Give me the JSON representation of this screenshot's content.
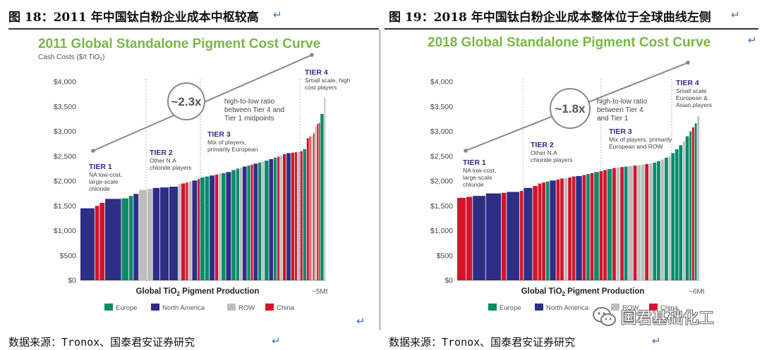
{
  "figures": [
    {
      "fig_title": "图 18：2011 年中国钛白粉企业成本中枢较高",
      "source": "数据来源：Tronox、国泰君安证券研究",
      "chart_data": {
        "type": "bar",
        "title": "2011 Global Standalone Pigment Cost Curve",
        "ylabel_prefix": "Cash Costs ($/t TiO",
        "ylabel_sub": "2",
        "ylabel_suffix": ")",
        "xlabel_prefix": "Global TiO",
        "xlabel_sub": "2",
        "xlabel_suffix": " Pigment Production",
        "xmax_label": "~5Mt",
        "ylim": [
          0,
          4000
        ],
        "yticks": [
          "$0",
          "$500",
          "$1,000",
          "$1,500",
          "$2,000",
          "$2,500",
          "$3,000",
          "$3,500",
          "$4,000"
        ],
        "ratio_label": "~2.3x",
        "ratio_note": [
          "high-to-low ratio",
          "between Tier 4 and",
          "Tier 1 midpoints"
        ],
        "tiers": [
          {
            "name": "TIER 1",
            "desc": [
              "NA low-cost,",
              "large-scale",
              "chloride"
            ]
          },
          {
            "name": "TIER 2",
            "desc": [
              "Other N.A",
              "chloride players"
            ]
          },
          {
            "name": "TIER 3",
            "desc": [
              "Mix of players,",
              "primarily European"
            ]
          },
          {
            "name": "TIER 4",
            "desc": [
              "Small scale, high",
              "cost players"
            ]
          }
        ],
        "legend": [
          {
            "name": "Europe",
            "color": "#0b8a6c"
          },
          {
            "name": "North America",
            "color": "#2e2e86"
          },
          {
            "name": "ROW",
            "color": "#bdbdbd"
          },
          {
            "name": "China",
            "color": "#d1152b"
          }
        ],
        "bars": [
          {
            "r": "North America",
            "w": 0.16,
            "v": 1450
          },
          {
            "r": "China",
            "w": 0.05,
            "v": 1500
          },
          {
            "r": "China",
            "w": 0.06,
            "v": 1560
          },
          {
            "r": "North America",
            "w": 0.18,
            "v": 1640
          },
          {
            "r": "Europe",
            "w": 0.08,
            "v": 1650
          },
          {
            "r": "Europe",
            "w": 0.05,
            "v": 1700
          },
          {
            "r": "North America",
            "w": 0.06,
            "v": 1740
          },
          {
            "r": "ROW",
            "w": 0.09,
            "v": 1820
          },
          {
            "r": "ROW",
            "w": 0.06,
            "v": 1840
          },
          {
            "r": "North America",
            "w": 0.08,
            "v": 1860
          },
          {
            "r": "North America",
            "w": 0.1,
            "v": 1870
          },
          {
            "r": "North America",
            "w": 0.1,
            "v": 1885
          },
          {
            "r": "ROW",
            "w": 0.03,
            "v": 1940
          },
          {
            "r": "China",
            "w": 0.05,
            "v": 1950
          },
          {
            "r": "China",
            "w": 0.03,
            "v": 1970
          },
          {
            "r": "ROW",
            "w": 0.04,
            "v": 1990
          },
          {
            "r": "North America",
            "w": 0.06,
            "v": 2010
          },
          {
            "r": "China",
            "w": 0.03,
            "v": 2040
          },
          {
            "r": "Europe",
            "w": 0.05,
            "v": 2070
          },
          {
            "r": "Europe",
            "w": 0.05,
            "v": 2090
          },
          {
            "r": "North America",
            "w": 0.06,
            "v": 2110
          },
          {
            "r": "China",
            "w": 0.04,
            "v": 2130
          },
          {
            "r": "ROW",
            "w": 0.03,
            "v": 2150
          },
          {
            "r": "Europe",
            "w": 0.05,
            "v": 2160
          },
          {
            "r": "North America",
            "w": 0.06,
            "v": 2180
          },
          {
            "r": "Europe",
            "w": 0.05,
            "v": 2220
          },
          {
            "r": "Europe",
            "w": 0.04,
            "v": 2250
          },
          {
            "r": "ROW",
            "w": 0.03,
            "v": 2270
          },
          {
            "r": "North America",
            "w": 0.05,
            "v": 2290
          },
          {
            "r": "Europe",
            "w": 0.04,
            "v": 2310
          },
          {
            "r": "China",
            "w": 0.03,
            "v": 2330
          },
          {
            "r": "North America",
            "w": 0.05,
            "v": 2350
          },
          {
            "r": "Europe",
            "w": 0.04,
            "v": 2370
          },
          {
            "r": "ROW",
            "w": 0.03,
            "v": 2390
          },
          {
            "r": "Europe",
            "w": 0.05,
            "v": 2410
          },
          {
            "r": "North America",
            "w": 0.05,
            "v": 2440
          },
          {
            "r": "Europe",
            "w": 0.04,
            "v": 2470
          },
          {
            "r": "China",
            "w": 0.03,
            "v": 2490
          },
          {
            "r": "ROW",
            "w": 0.03,
            "v": 2510
          },
          {
            "r": "China",
            "w": 0.04,
            "v": 2540
          },
          {
            "r": "North America",
            "w": 0.05,
            "v": 2560
          },
          {
            "r": "China",
            "w": 0.04,
            "v": 2570
          },
          {
            "r": "China",
            "w": 0.03,
            "v": 2580
          },
          {
            "r": "ROW",
            "w": 0.03,
            "v": 2590
          },
          {
            "r": "China",
            "w": 0.03,
            "v": 2600
          },
          {
            "r": "Europe",
            "w": 0.04,
            "v": 2640
          },
          {
            "r": "China",
            "w": 0.03,
            "v": 2860
          },
          {
            "r": "China",
            "w": 0.02,
            "v": 2900
          },
          {
            "r": "ROW",
            "w": 0.02,
            "v": 2920
          },
          {
            "r": "China",
            "w": 0.02,
            "v": 2960
          },
          {
            "r": "ROW",
            "w": 0.02,
            "v": 3100
          },
          {
            "r": "China",
            "w": 0.02,
            "v": 3150
          },
          {
            "r": "China",
            "w": 0.02,
            "v": 3170
          },
          {
            "r": "Europe",
            "w": 0.04,
            "v": 3350
          },
          {
            "r": "ROW",
            "w": 0.02,
            "v": 3680
          }
        ]
      }
    },
    {
      "fig_title": "图 19：2018 年中国钛白粉企业成本整体位于全球曲线左侧",
      "source": "数据来源：Tronox、国泰君安证券研究",
      "watermark": "国君基础化工",
      "chart_data": {
        "type": "bar",
        "title": "2018 Global Standalone Pigment Cost Curve",
        "xlabel_prefix": "Global TiO",
        "xlabel_sub": "2",
        "xlabel_suffix": " Pigment Production",
        "xmax_label": "~6Mt",
        "ylim": [
          0,
          4000
        ],
        "yticks": [
          "$0",
          "$500",
          "$1,000",
          "$1,500",
          "$2,000",
          "$2,500",
          "$3,000",
          "$3,500",
          "$4,000"
        ],
        "ratio_label": "~1.8x",
        "ratio_note": [
          "high-to-low ratio",
          "between Tier 4",
          "and Tier 1"
        ],
        "tiers": [
          {
            "name": "TIER 1",
            "desc": [
              "NA low-cost,",
              "large-scale",
              "chloride"
            ]
          },
          {
            "name": "TIER 2",
            "desc": [
              "Other N.A",
              "chloride players"
            ]
          },
          {
            "name": "TIER 3",
            "desc": [
              "Mix of players, primarily",
              "European and ROW"
            ]
          },
          {
            "name": "TIER 4",
            "desc": [
              "Small scale",
              "European &",
              "Asian players"
            ]
          }
        ],
        "legend": [
          {
            "name": "Europe",
            "color": "#0b8a6c"
          },
          {
            "name": "North America",
            "color": "#2e2e86"
          },
          {
            "name": "ROW",
            "color": "#bdbdbd"
          },
          {
            "name": "China",
            "color": "#d1152b"
          }
        ],
        "bars": [
          {
            "r": "China",
            "w": 0.07,
            "v": 1660
          },
          {
            "r": "China",
            "w": 0.05,
            "v": 1680
          },
          {
            "r": "North America",
            "w": 0.1,
            "v": 1700
          },
          {
            "r": "North America",
            "w": 0.12,
            "v": 1750
          },
          {
            "r": "China",
            "w": 0.04,
            "v": 1760
          },
          {
            "r": "North America",
            "w": 0.1,
            "v": 1780
          },
          {
            "r": "China",
            "w": 0.03,
            "v": 1800
          },
          {
            "r": "North America",
            "w": 0.07,
            "v": 1860
          },
          {
            "r": "China",
            "w": 0.04,
            "v": 1900
          },
          {
            "r": "China",
            "w": 0.03,
            "v": 1950
          },
          {
            "r": "China",
            "w": 0.03,
            "v": 1970
          },
          {
            "r": "Europe",
            "w": 0.03,
            "v": 1990
          },
          {
            "r": "North America",
            "w": 0.05,
            "v": 2010
          },
          {
            "r": "China",
            "w": 0.03,
            "v": 2030
          },
          {
            "r": "China",
            "w": 0.03,
            "v": 2050
          },
          {
            "r": "ROW",
            "w": 0.03,
            "v": 2060
          },
          {
            "r": "China",
            "w": 0.03,
            "v": 2070
          },
          {
            "r": "China",
            "w": 0.03,
            "v": 2090
          },
          {
            "r": "North America",
            "w": 0.05,
            "v": 2100
          },
          {
            "r": "China",
            "w": 0.03,
            "v": 2120
          },
          {
            "r": "Europe",
            "w": 0.03,
            "v": 2140
          },
          {
            "r": "China",
            "w": 0.03,
            "v": 2160
          },
          {
            "r": "Europe",
            "w": 0.04,
            "v": 2180
          },
          {
            "r": "China",
            "w": 0.03,
            "v": 2200
          },
          {
            "r": "China",
            "w": 0.03,
            "v": 2220
          },
          {
            "r": "Europe",
            "w": 0.04,
            "v": 2240
          },
          {
            "r": "China",
            "w": 0.03,
            "v": 2260
          },
          {
            "r": "ROW",
            "w": 0.03,
            "v": 2270
          },
          {
            "r": "China",
            "w": 0.03,
            "v": 2280
          },
          {
            "r": "Europe",
            "w": 0.03,
            "v": 2290
          },
          {
            "r": "ROW",
            "w": 0.04,
            "v": 2300
          },
          {
            "r": "China",
            "w": 0.03,
            "v": 2310
          },
          {
            "r": "ROW",
            "w": 0.03,
            "v": 2320
          },
          {
            "r": "ROW",
            "w": 0.03,
            "v": 2330
          },
          {
            "r": "China",
            "w": 0.03,
            "v": 2340
          },
          {
            "r": "ROW",
            "w": 0.03,
            "v": 2350
          },
          {
            "r": "Europe",
            "w": 0.03,
            "v": 2370
          },
          {
            "r": "Europe",
            "w": 0.03,
            "v": 2400
          },
          {
            "r": "ROW",
            "w": 0.03,
            "v": 2430
          },
          {
            "r": "Europe",
            "w": 0.03,
            "v": 2470
          },
          {
            "r": "ROW",
            "w": 0.02,
            "v": 2500
          },
          {
            "r": "Europe",
            "w": 0.03,
            "v": 2560
          },
          {
            "r": "Europe",
            "w": 0.03,
            "v": 2640
          },
          {
            "r": "Europe",
            "w": 0.03,
            "v": 2720
          },
          {
            "r": "ROW",
            "w": 0.02,
            "v": 2800
          },
          {
            "r": "Europe",
            "w": 0.03,
            "v": 2900
          },
          {
            "r": "Europe",
            "w": 0.02,
            "v": 3000
          },
          {
            "r": "China",
            "w": 0.02,
            "v": 3080
          },
          {
            "r": "Europe",
            "w": 0.02,
            "v": 3160
          },
          {
            "r": "ROW",
            "w": 0.02,
            "v": 3300
          }
        ]
      }
    }
  ]
}
